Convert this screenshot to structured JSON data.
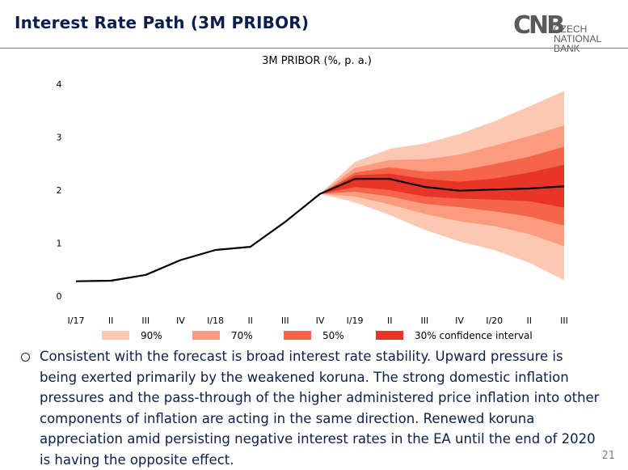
{
  "slide": {
    "title": "Interest Rate Path (3M PRIBOR)",
    "page_number": "21",
    "logo": {
      "mark": "CNB",
      "line1": "CZECH",
      "line2": "NATIONAL BANK"
    }
  },
  "bullet": {
    "text": "Consistent with the forecast is broad interest rate stability. Upward pressure is being exerted primarily by the weakened koruna. The strong domestic inflation pressures and the pass-through of the higher administered price inflation into other components of inflation are acting in the same direction. Renewed koruna appreciation amid persisting negative interest rates in the EA until the end of 2020 is having the opposite effect."
  },
  "chart_data": {
    "type": "area",
    "title": "3M PRIBOR (%, p. a.)",
    "categories": [
      "I/17",
      "II",
      "III",
      "IV",
      "I/18",
      "II",
      "III",
      "IV",
      "I/19",
      "II",
      "III",
      "IV",
      "I/20",
      "II",
      "III"
    ],
    "ylim": [
      0,
      4
    ],
    "yticks": [
      "0",
      "1",
      "2",
      "3",
      "4"
    ],
    "grid": false,
    "legend_position": "bottom",
    "central_path": [
      0.28,
      0.29,
      0.4,
      0.68,
      0.87,
      0.93,
      1.4,
      1.93,
      2.21,
      2.21,
      2.06,
      1.99,
      2.01,
      2.03,
      2.07
    ],
    "bands_start_index": 7,
    "bands": [
      {
        "name": "90%",
        "color": "#fcc8b2",
        "lower": [
          1.93,
          1.77,
          1.53,
          1.25,
          1.03,
          0.87,
          0.63,
          0.3
        ],
        "upper": [
          1.93,
          2.53,
          2.78,
          2.88,
          3.06,
          3.3,
          3.58,
          3.87
        ]
      },
      {
        "name": "70%",
        "color": "#fb9c80",
        "lower": [
          1.93,
          1.88,
          1.73,
          1.55,
          1.41,
          1.32,
          1.17,
          0.94
        ],
        "upper": [
          1.93,
          2.42,
          2.57,
          2.58,
          2.67,
          2.84,
          3.02,
          3.22
        ]
      },
      {
        "name": "50%",
        "color": "#f6654a",
        "lower": [
          1.93,
          1.97,
          1.88,
          1.74,
          1.68,
          1.6,
          1.5,
          1.33
        ],
        "upper": [
          1.93,
          2.33,
          2.43,
          2.35,
          2.37,
          2.49,
          2.63,
          2.82
        ]
      },
      {
        "name": "30% confidence interval",
        "color": "#e8352a",
        "lower": [
          1.93,
          2.06,
          2.0,
          1.88,
          1.84,
          1.82,
          1.79,
          1.67
        ],
        "upper": [
          1.93,
          2.28,
          2.31,
          2.21,
          2.16,
          2.22,
          2.33,
          2.48
        ]
      }
    ]
  }
}
